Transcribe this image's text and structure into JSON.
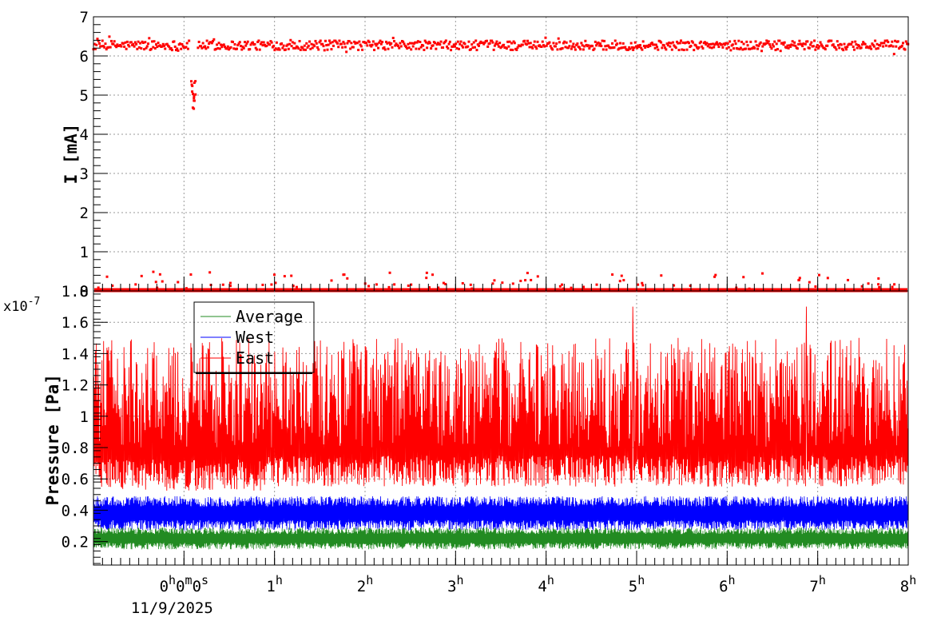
{
  "chart_data": [
    {
      "type": "scatter",
      "ylabel": "I [mA]",
      "ylim": [
        0,
        7
      ],
      "y_ticks": [
        "0",
        "1",
        "2",
        "3",
        "4",
        "5",
        "6",
        "7"
      ],
      "grid": true,
      "series": [
        {
          "color": "#ff0000",
          "points_description_values": {
            "main_level": 6.27,
            "main_spread": 0.12,
            "dip_x_hours": [
              0.08,
              0.13
            ],
            "dip_values": [
              4.65,
              5.4
            ],
            "baseline_level": 0.02,
            "scatter_low_values_max": 0.5
          }
        }
      ]
    },
    {
      "type": "line",
      "ylabel": "Pressure [Pa]",
      "y_scale_label": "x10",
      "y_scale_exp": "-7",
      "ylim": [
        0.05,
        1.8
      ],
      "y_ticks": [
        "0.2",
        "0.4",
        "0.6",
        "0.8",
        "1",
        "1.2",
        "1.4",
        "1.6",
        "1.8"
      ],
      "grid": true,
      "legend_position": "top-left",
      "series": [
        {
          "name": "Average",
          "color": "#228b22",
          "center": 0.22,
          "amplitude": 0.07
        },
        {
          "name": "West",
          "color": "#0000ff",
          "center": 0.38,
          "amplitude": 0.11
        },
        {
          "name": "East",
          "color": "#ff0000",
          "center": 0.95,
          "amplitude": 0.45,
          "max_spike": 1.7
        }
      ]
    }
  ],
  "x_axis": {
    "xlim_hours": [
      -1,
      8
    ],
    "tick_hours": [
      0,
      1,
      2,
      3,
      4,
      5,
      6,
      7,
      8
    ],
    "tick_labels": [
      {
        "base": "0",
        "sup": "h",
        "extra": "0",
        "sup2": "m",
        "extra2": "0",
        "sup3": "s"
      },
      {
        "base": "1",
        "sup": "h"
      },
      {
        "base": "2",
        "sup": "h"
      },
      {
        "base": "3",
        "sup": "h"
      },
      {
        "base": "4",
        "sup": "h"
      },
      {
        "base": "5",
        "sup": "h"
      },
      {
        "base": "6",
        "sup": "h"
      },
      {
        "base": "7",
        "sup": "h"
      },
      {
        "base": "8",
        "sup": "h"
      }
    ],
    "date_label": "11/9/2025"
  }
}
